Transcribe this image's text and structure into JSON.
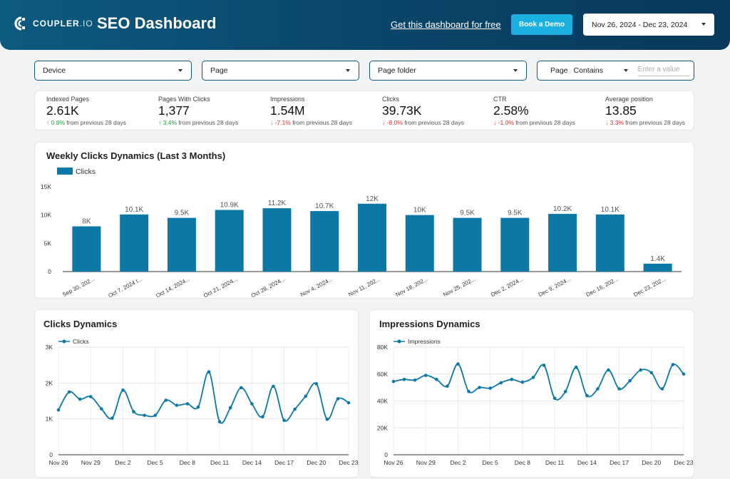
{
  "header": {
    "logo_text": "COUPLER",
    "logo_suffix": ".IO",
    "title": "SEO Dashboard",
    "free_link": "Get this dashboard for free",
    "demo_button": "Book a Demo",
    "date_range": "Nov 26, 2024 - Dec 23, 2024"
  },
  "filters": {
    "device": "Device",
    "page": "Page",
    "page_folder": "Page folder",
    "page_label": "Page",
    "operator": "Contains",
    "value_placeholder": "Enter a value"
  },
  "kpis": [
    {
      "label": "Indexed Pages",
      "value": "2.61K",
      "delta": "0.8%",
      "dir": "up",
      "suffix": "from previous 28 days"
    },
    {
      "label": "Pages With Clicks",
      "value": "1,377",
      "delta": "3.4%",
      "dir": "up",
      "suffix": "from previous 28 days"
    },
    {
      "label": "Impressions",
      "value": "1.54M",
      "delta": "-7.1%",
      "dir": "down",
      "suffix": "from previous 28 days"
    },
    {
      "label": "Clicks",
      "value": "39.73K",
      "delta": "-8.0%",
      "dir": "down",
      "suffix": "from previous 28 days"
    },
    {
      "label": "CTR",
      "value": "2.58%",
      "delta": "-1.0%",
      "dir": "down",
      "suffix": "from previous 28 days"
    },
    {
      "label": "Average position",
      "value": "13.85",
      "delta": "3.3%",
      "dir": "down",
      "suffix": "from previous 28 days"
    }
  ],
  "colors": {
    "accent": "#0b78a5",
    "header": "#0a4468",
    "button": "#1ab0e0",
    "up": "#1e9e3a",
    "down": "#d93025"
  },
  "chart_data": [
    {
      "type": "bar",
      "title": "Weekly Clicks Dynamics (Last 3 Months)",
      "legend": [
        "Clicks"
      ],
      "categories": [
        "Sep 30, 202...",
        "Oct 7, 2024 t...",
        "Oct 14, 2024...",
        "Oct 21, 2024...",
        "Oct 28, 2024...",
        "Nov 4, 2024...",
        "Nov 11, 202...",
        "Nov 18, 202...",
        "Nov 25, 202...",
        "Dec 2, 2024...",
        "Dec 9, 2024...",
        "Dec 16, 202...",
        "Dec 23, 202..."
      ],
      "values": [
        8000,
        10100,
        9500,
        10900,
        11200,
        10700,
        12000,
        10000,
        9500,
        9500,
        10200,
        10100,
        1400
      ],
      "labels": [
        "8K",
        "10.1K",
        "9.5K",
        "10.9K",
        "11.2K",
        "10.7K",
        "12K",
        "10K",
        "9.5K",
        "9.5K",
        "10.2K",
        "10.1K",
        "1.4K"
      ],
      "ylim": [
        0,
        15000
      ],
      "yticks": [
        0,
        5000,
        10000,
        15000
      ],
      "ytick_labels": [
        "0",
        "5K",
        "10K",
        "15K"
      ]
    },
    {
      "type": "line",
      "title": "Clicks Dynamics",
      "legend": [
        "Clicks"
      ],
      "values": [
        1250,
        1750,
        1550,
        1620,
        1280,
        1020,
        1800,
        1200,
        1100,
        1100,
        1520,
        1380,
        1420,
        1330,
        2310,
        920,
        1310,
        1870,
        1420,
        1060,
        1910,
        960,
        1270,
        1630,
        1980,
        990,
        1560,
        1450
      ],
      "xtick_labels": [
        "Nov 26",
        "Nov 29",
        "Dec 2",
        "Dec 5",
        "Dec 8",
        "Dec 11",
        "Dec 14",
        "Dec 17",
        "Dec 20",
        "Dec 23"
      ],
      "ylim": [
        0,
        3000
      ],
      "yticks": [
        0,
        1000,
        2000,
        3000
      ],
      "ytick_labels": [
        "0",
        "1K",
        "2K",
        "3K"
      ]
    },
    {
      "type": "line",
      "title": "Impressions Dynamics",
      "legend": [
        "Impressions"
      ],
      "values": [
        54500,
        56000,
        55500,
        59000,
        56000,
        51000,
        67500,
        47000,
        50000,
        49500,
        53500,
        56000,
        54000,
        57500,
        66500,
        42000,
        47000,
        65000,
        44000,
        49000,
        63000,
        49000,
        55000,
        63000,
        61000,
        49000,
        67000,
        60000
      ],
      "xtick_labels": [
        "Nov 26",
        "Nov 29",
        "Dec 2",
        "Dec 5",
        "Dec 8",
        "Dec 11",
        "Dec 14",
        "Dec 17",
        "Dec 20",
        "Dec 23"
      ],
      "ylim": [
        0,
        80000
      ],
      "yticks": [
        0,
        20000,
        40000,
        60000,
        80000
      ],
      "ytick_labels": [
        "0",
        "20K",
        "40K",
        "60K",
        "80K"
      ]
    }
  ]
}
